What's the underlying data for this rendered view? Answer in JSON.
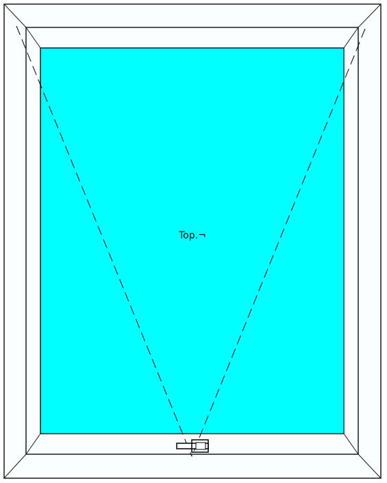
{
  "diagram": {
    "glass_label": "Top.¬",
    "opening_type": "top-hung",
    "colors": {
      "frame_fill": "#fafeff",
      "frame_stroke": "#1a1a1a",
      "glass_fill": "#00ffff",
      "hinge_line": "#000000",
      "page_background": "#ffffff"
    },
    "icons": {
      "handle": "window-handle-icon"
    }
  }
}
